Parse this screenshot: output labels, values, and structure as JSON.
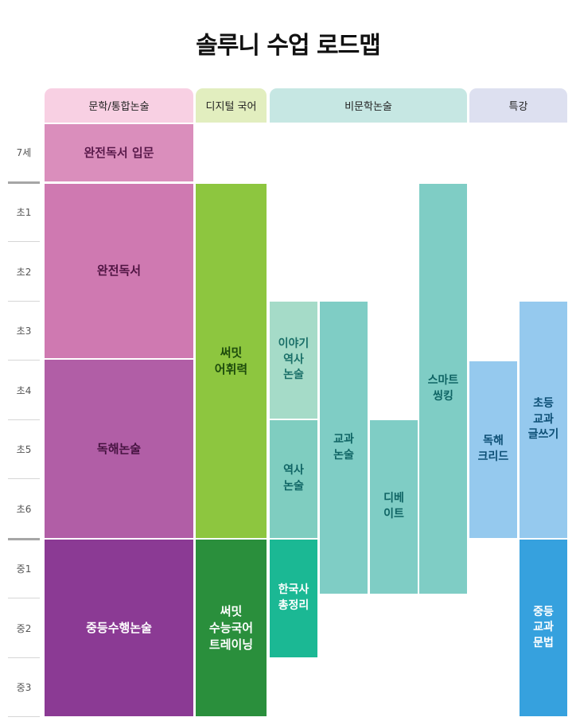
{
  "title": "솔루니 수업 로드맵",
  "columns": [
    {
      "label": "문학/통합논술",
      "color": "#f8d0e3"
    },
    {
      "label": "디지털 국어",
      "color": "#e2eebf"
    },
    {
      "label": "비문학논술",
      "color": "#c6e7e3"
    },
    {
      "label": "특강",
      "color": "#dde0f0"
    }
  ],
  "rows": [
    "7세",
    "초1",
    "초2",
    "초3",
    "초4",
    "초5",
    "초6",
    "중1",
    "중2",
    "중3"
  ],
  "courses": {
    "wanjeon_intro": "완전독서 입문",
    "wanjeon": "완전독서",
    "dokhae_nonsul": "독해논술",
    "jungdeung_suhaeng": "중등수행논술",
    "ssumit_vocab": "써밋\n어휘력",
    "ssumit_suneung": "써밋\n수능국어\n트레이닝",
    "iyagi_history": "이야기\n역사\n논술",
    "history_nonsul": "역사\n논술",
    "korean_history": "한국사\n총정리",
    "textbook_nonsul": "교과\n논술",
    "debate": "디베\n이트",
    "smart_thinking": "스마트\n씽킹",
    "dokhae_kreed": "독해\n크리드",
    "elem_writing": "초등\n교과\n글쓰기",
    "middle_grammar": "중등\n교과\n문법"
  }
}
